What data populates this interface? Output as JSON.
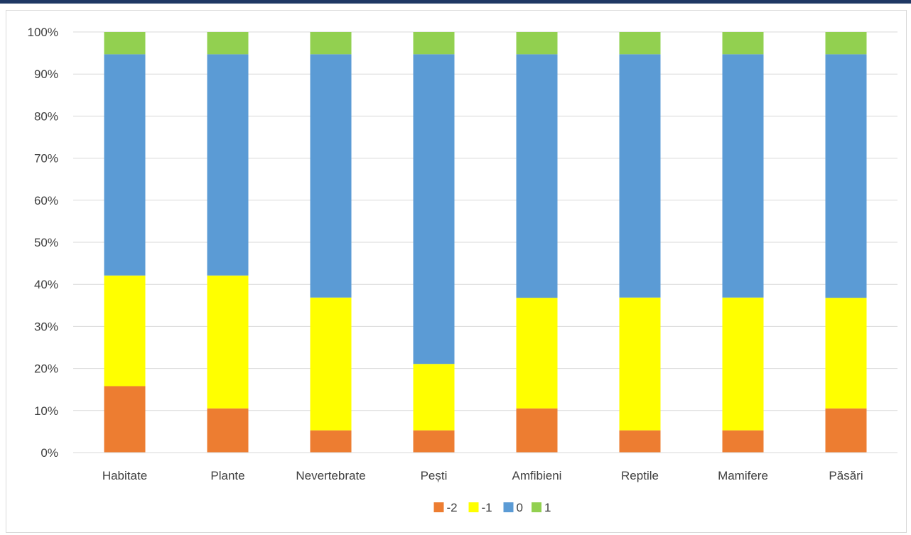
{
  "chart_data": {
    "type": "bar",
    "stacked": true,
    "percent": true,
    "categories": [
      "Habitate",
      "Plante",
      "Nevertebrate",
      "Pești",
      "Amfibieni",
      "Reptile",
      "Mamifere",
      "Păsări"
    ],
    "series": [
      {
        "name": "-2",
        "color": "#ed7d31",
        "values": [
          15.8,
          10.5,
          5.3,
          5.3,
          10.5,
          5.3,
          5.3,
          10.5
        ]
      },
      {
        "name": "-1",
        "color": "#ffff00",
        "values": [
          26.3,
          31.6,
          31.6,
          15.8,
          26.3,
          31.6,
          31.6,
          26.3
        ]
      },
      {
        "name": "0",
        "color": "#5b9bd5",
        "values": [
          52.6,
          52.6,
          57.9,
          73.7,
          57.9,
          57.9,
          57.9,
          57.9
        ]
      },
      {
        "name": "1",
        "color": "#92d050",
        "values": [
          5.3,
          5.3,
          5.3,
          5.3,
          5.3,
          5.3,
          5.3,
          5.3
        ]
      }
    ],
    "y_ticks": [
      "0%",
      "10%",
      "20%",
      "30%",
      "40%",
      "50%",
      "60%",
      "70%",
      "80%",
      "90%",
      "100%"
    ],
    "ylim": [
      0,
      100
    ],
    "grid": true,
    "legend_position": "bottom"
  }
}
